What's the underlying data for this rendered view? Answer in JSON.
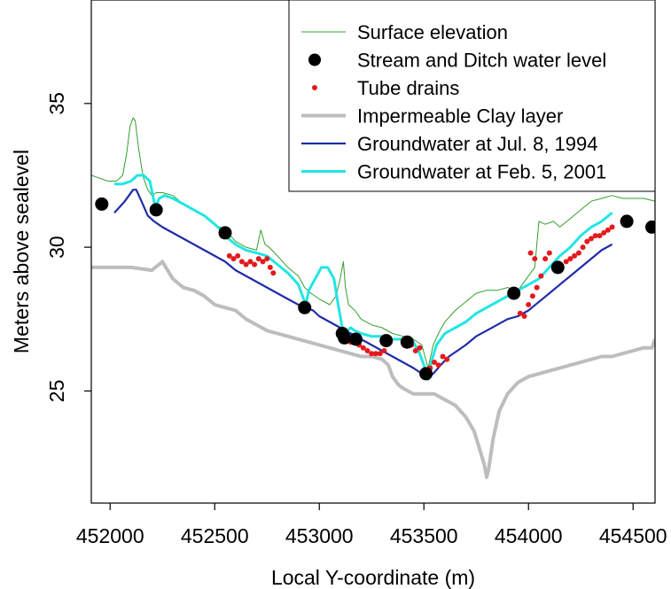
{
  "chart_data": {
    "type": "line",
    "title": "",
    "xlabel": "Local Y-coordinate (m)",
    "ylabel": "Meters above sealevel",
    "xlim": [
      451910,
      454605
    ],
    "ylim": [
      21.1,
      38.6
    ],
    "xticks": [
      452000,
      452500,
      453000,
      453500,
      454000,
      454500
    ],
    "xtick_labels": [
      "452000",
      "452500",
      "453000",
      "453500",
      "454000",
      "454500"
    ],
    "yticks": [
      25,
      30,
      35
    ],
    "ytick_labels": [
      "25",
      "30",
      "35"
    ],
    "grid": false,
    "legend_position": "top-right",
    "series": [
      {
        "name": "Surface elevation",
        "kind": "line",
        "color": "#33a02c",
        "x": [
          451910,
          451950,
          451990,
          452030,
          452060,
          452080,
          452095,
          452110,
          452120,
          452135,
          452150,
          452160,
          452180,
          452200,
          452220,
          452250,
          452300,
          452350,
          452400,
          452450,
          452500,
          452550,
          452600,
          452650,
          452700,
          452720,
          452740,
          452760,
          452800,
          452850,
          452900,
          452930,
          452960,
          453000,
          453050,
          453080,
          453100,
          453115,
          453125,
          453140,
          453170,
          453200,
          453250,
          453300,
          453350,
          453400,
          453450,
          453490,
          453520,
          453545,
          453570,
          453600,
          453650,
          453700,
          453750,
          453800,
          453850,
          453900,
          453950,
          454000,
          454030,
          454050,
          454080,
          454120,
          454150,
          454200,
          454250,
          454300,
          454350,
          454400,
          454450,
          454500,
          454550,
          454605
        ],
        "y": [
          32.5,
          32.4,
          32.3,
          32.3,
          32.5,
          33.3,
          34.2,
          34.5,
          34.4,
          33.5,
          32.8,
          32.4,
          32.0,
          31.8,
          31.9,
          31.9,
          31.8,
          31.5,
          31.3,
          31.1,
          30.8,
          30.6,
          30.2,
          30.0,
          29.9,
          30.6,
          30.1,
          30.0,
          29.7,
          29.3,
          29.0,
          28.6,
          28.4,
          28.2,
          28.0,
          28.3,
          28.9,
          29.5,
          28.6,
          28.0,
          27.8,
          27.5,
          27.3,
          27.2,
          27.0,
          26.9,
          26.8,
          26.6,
          25.8,
          26.6,
          27.0,
          27.4,
          27.8,
          28.1,
          28.4,
          28.5,
          28.5,
          28.6,
          28.5,
          29.0,
          29.3,
          30.9,
          30.8,
          30.9,
          30.7,
          31.0,
          31.3,
          31.6,
          31.7,
          31.8,
          31.7,
          31.7,
          31.7,
          31.6
        ]
      },
      {
        "name": "Stream and Ditch water level",
        "kind": "points",
        "color": "#000000",
        "x": [
          451960,
          452220,
          452550,
          452930,
          453110,
          453120,
          453175,
          453320,
          453420,
          453510,
          453930,
          454140,
          454470,
          454590
        ],
        "y": [
          31.5,
          31.3,
          30.5,
          27.9,
          27.0,
          26.85,
          26.8,
          26.75,
          26.7,
          25.6,
          28.4,
          29.3,
          30.9,
          30.7
        ]
      },
      {
        "name": "Tube drains",
        "kind": "points",
        "color": "#e31a1c",
        "x": [
          452570,
          452590,
          452610,
          452630,
          452650,
          452670,
          452690,
          452710,
          452730,
          452750,
          452765,
          452780,
          453130,
          453150,
          453170,
          453190,
          453210,
          453230,
          453250,
          453270,
          453290,
          453310,
          453440,
          453460,
          453480,
          453530,
          453550,
          453570,
          453590,
          453610,
          453960,
          453980,
          454000,
          454020,
          454040,
          454060,
          454080,
          454100,
          454180,
          454200,
          454220,
          454240,
          454260,
          454280,
          454300,
          454320,
          454340,
          454360,
          454380,
          454400,
          454010,
          454030
        ],
        "y": [
          29.7,
          29.6,
          29.7,
          29.5,
          29.4,
          29.5,
          29.4,
          29.6,
          29.5,
          29.6,
          29.3,
          29.1,
          26.9,
          26.7,
          26.8,
          26.6,
          26.5,
          26.4,
          26.3,
          26.3,
          26.3,
          26.4,
          26.6,
          26.4,
          26.5,
          25.8,
          26.0,
          25.9,
          26.2,
          26.1,
          27.7,
          27.6,
          28.0,
          28.3,
          28.6,
          29.0,
          29.6,
          29.8,
          29.5,
          29.6,
          29.7,
          29.8,
          30.0,
          30.2,
          30.3,
          30.4,
          30.4,
          30.5,
          30.6,
          30.7,
          29.8,
          29.6
        ]
      },
      {
        "name": "Impermeable Clay layer",
        "kind": "line",
        "color": "#bdbdbd",
        "x": [
          451910,
          452000,
          452100,
          452200,
          452250,
          452300,
          452350,
          452400,
          452450,
          452500,
          452550,
          452600,
          452650,
          452700,
          452750,
          452800,
          452850,
          452900,
          452950,
          453000,
          453050,
          453100,
          453150,
          453200,
          453250,
          453300,
          453330,
          453350,
          453380,
          453400,
          453450,
          453500,
          453550,
          453600,
          453650,
          453700,
          453740,
          453770,
          453790,
          453800,
          453810,
          453830,
          453860,
          453900,
          453950,
          454000,
          454050,
          454100,
          454150,
          454200,
          454250,
          454300,
          454350,
          454400,
          454450,
          454500,
          454550,
          454590,
          454605
        ],
        "y": [
          29.3,
          29.3,
          29.3,
          29.2,
          29.5,
          28.9,
          28.6,
          28.5,
          28.3,
          28.0,
          27.9,
          27.8,
          27.5,
          27.3,
          27.1,
          27.0,
          26.9,
          26.8,
          26.7,
          26.6,
          26.5,
          26.4,
          26.3,
          26.2,
          26.2,
          26.1,
          25.9,
          25.5,
          25.2,
          25.1,
          24.9,
          24.9,
          24.9,
          24.7,
          24.5,
          24.1,
          23.6,
          22.9,
          22.4,
          22.0,
          22.3,
          23.3,
          24.3,
          24.9,
          25.3,
          25.5,
          25.6,
          25.7,
          25.8,
          25.9,
          26.0,
          26.1,
          26.2,
          26.2,
          26.3,
          26.4,
          26.5,
          26.5,
          26.8
        ]
      },
      {
        "name": "Groundwater at Jul. 8, 1994",
        "kind": "line",
        "color": "#1f2ca8",
        "x": [
          452020,
          452070,
          452110,
          452125,
          452150,
          452180,
          452210,
          452250,
          452300,
          452350,
          452400,
          452450,
          452500,
          452550,
          452600,
          452650,
          452700,
          452750,
          452800,
          452850,
          452900,
          452935,
          452970,
          453000,
          453050,
          453100,
          453150,
          453200,
          453250,
          453300,
          453350,
          453400,
          453450,
          453490,
          453520,
          453545,
          453580,
          453620,
          453660,
          453700,
          453750,
          453800,
          453850,
          453900,
          453950,
          454000,
          454050,
          454100,
          454150,
          454200,
          454250,
          454300,
          454350,
          454400
        ],
        "y": [
          31.2,
          31.6,
          32.0,
          32.0,
          31.6,
          31.1,
          30.9,
          30.7,
          30.5,
          30.3,
          30.1,
          29.9,
          29.7,
          29.5,
          29.2,
          29.0,
          28.8,
          28.6,
          28.4,
          28.2,
          28.0,
          27.9,
          27.8,
          27.6,
          27.4,
          27.2,
          27.0,
          26.8,
          26.6,
          26.4,
          26.2,
          26.0,
          25.8,
          25.6,
          25.5,
          25.6,
          25.9,
          26.2,
          26.4,
          26.6,
          26.9,
          27.1,
          27.3,
          27.5,
          27.6,
          27.8,
          28.1,
          28.4,
          28.7,
          29.0,
          29.3,
          29.6,
          29.9,
          30.1
        ]
      },
      {
        "name": "Groundwater at Feb. 5, 2001",
        "kind": "line",
        "color": "#22e5e5",
        "x": [
          452020,
          452060,
          452100,
          452130,
          452160,
          452190,
          452215,
          452235,
          452260,
          452300,
          452350,
          452400,
          452450,
          452500,
          452530,
          452550,
          452565,
          452600,
          452650,
          452700,
          452750,
          452800,
          452850,
          452900,
          452925,
          452935,
          452950,
          452980,
          453010,
          453040,
          453070,
          453090,
          453110,
          453120,
          453135,
          453150,
          453170,
          453200,
          453250,
          453300,
          453350,
          453400,
          453450,
          453480,
          453505,
          453520,
          453535,
          453560,
          453600,
          453650,
          453700,
          453750,
          453800,
          453850,
          453900,
          453950,
          454000,
          454050,
          454100,
          454150,
          454200,
          454250,
          454300,
          454350,
          454400
        ],
        "y": [
          32.2,
          32.2,
          32.3,
          32.5,
          32.5,
          32.3,
          31.4,
          31.7,
          31.8,
          31.7,
          31.5,
          31.3,
          31.1,
          30.8,
          30.6,
          30.4,
          30.3,
          30.1,
          29.9,
          29.8,
          29.7,
          29.4,
          29.1,
          28.7,
          28.2,
          28.0,
          28.5,
          28.9,
          29.3,
          29.3,
          28.9,
          28.0,
          27.2,
          27.1,
          27.1,
          27.2,
          27.1,
          27.0,
          26.9,
          26.9,
          26.8,
          26.8,
          26.7,
          26.3,
          25.8,
          25.4,
          26.0,
          26.6,
          27.0,
          27.2,
          27.4,
          27.7,
          27.9,
          28.1,
          28.3,
          28.5,
          28.7,
          28.9,
          29.3,
          29.7,
          30.0,
          30.4,
          30.7,
          30.9,
          31.2
        ]
      }
    ]
  }
}
